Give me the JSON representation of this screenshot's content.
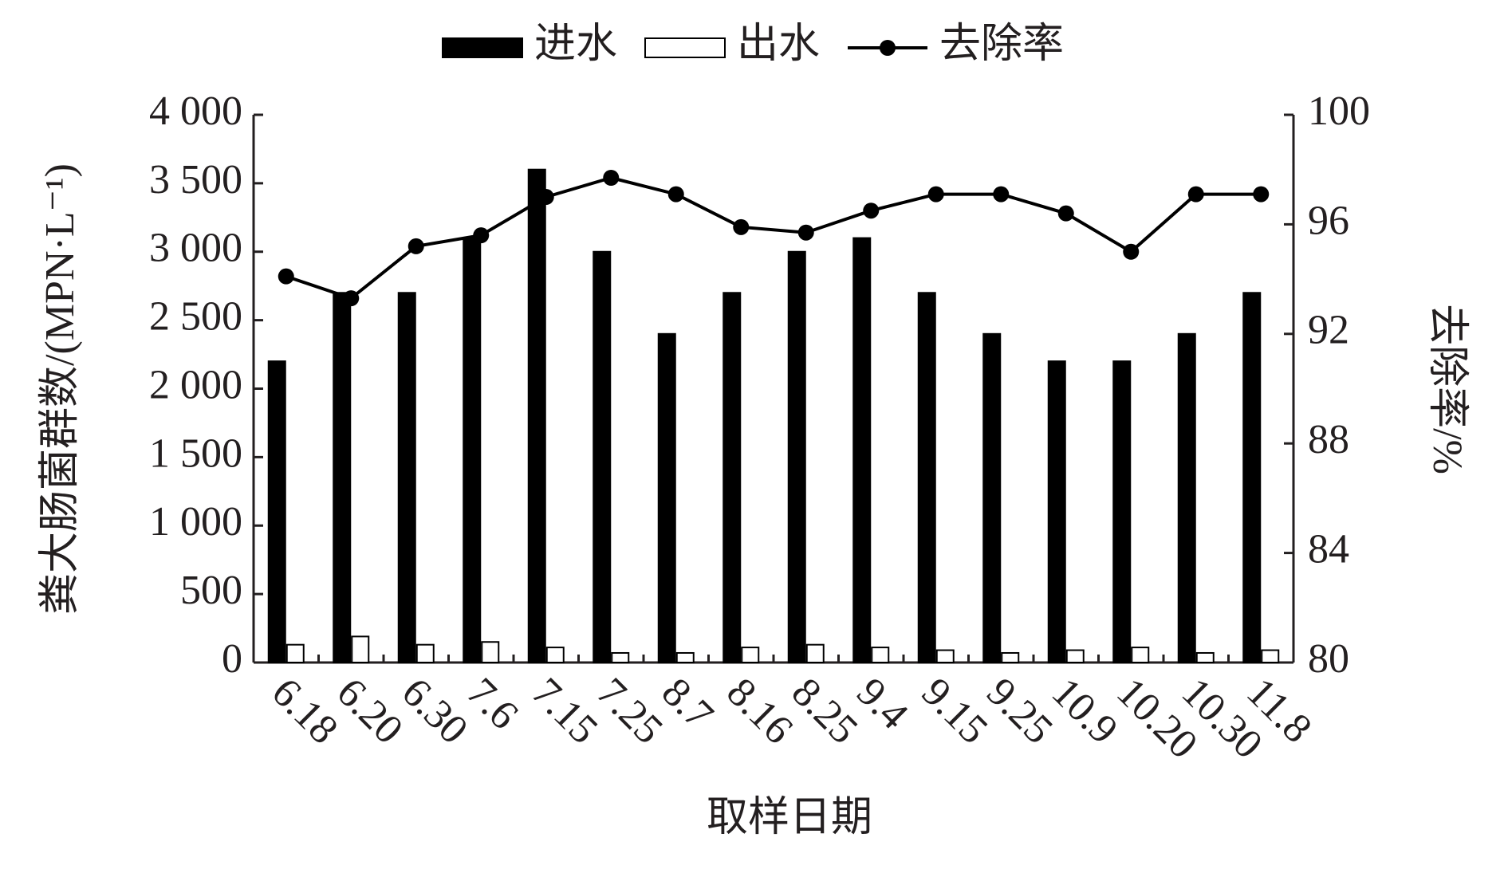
{
  "chart_data": {
    "type": "bar",
    "x_label": "取样日期",
    "y_label": "粪大肠菌群数/(MPN·L⁻¹)",
    "y2_label": "去除率/%",
    "categories": [
      "6.18",
      "6.20",
      "6.30",
      "7.6",
      "7.15",
      "7.25",
      "8.7",
      "8.16",
      "8.25",
      "9.4",
      "9.15",
      "9.25",
      "10.9",
      "10.20",
      "10.30",
      "11.8"
    ],
    "series": [
      {
        "name": "进水",
        "type": "bar",
        "color": "#000000",
        "values": [
          2200,
          2700,
          2700,
          3100,
          3600,
          3000,
          2400,
          2700,
          3000,
          3100,
          2700,
          2400,
          2200,
          2200,
          2400,
          2700
        ]
      },
      {
        "name": "出水",
        "type": "bar",
        "color": "#ffffff",
        "values": [
          130,
          190,
          130,
          150,
          110,
          70,
          70,
          110,
          130,
          110,
          90,
          70,
          90,
          110,
          70,
          90
        ]
      },
      {
        "name": "去除率",
        "type": "line",
        "axis": "y2",
        "color": "#000000",
        "values": [
          94.1,
          93.3,
          95.2,
          95.6,
          97.0,
          97.7,
          97.1,
          95.9,
          95.7,
          96.5,
          97.1,
          97.1,
          96.4,
          95.0,
          97.1,
          97.1
        ]
      }
    ],
    "ylim": [
      0,
      4000
    ],
    "yticks": [
      0,
      500,
      {
        "value": 1000,
        "label": "1 000"
      },
      {
        "value": 1500,
        "label": "1 500"
      },
      {
        "value": 2000,
        "label": "2 000"
      },
      {
        "value": 2500,
        "label": "2 500"
      },
      {
        "value": 3000,
        "label": "3 000"
      },
      {
        "value": 3500,
        "label": "3 500"
      },
      {
        "value": 4000,
        "label": "4 000"
      }
    ],
    "y2lim": [
      80,
      100
    ],
    "y2ticks": [
      80,
      84,
      88,
      92,
      96,
      100
    ],
    "legend": "top",
    "grid": false
  }
}
